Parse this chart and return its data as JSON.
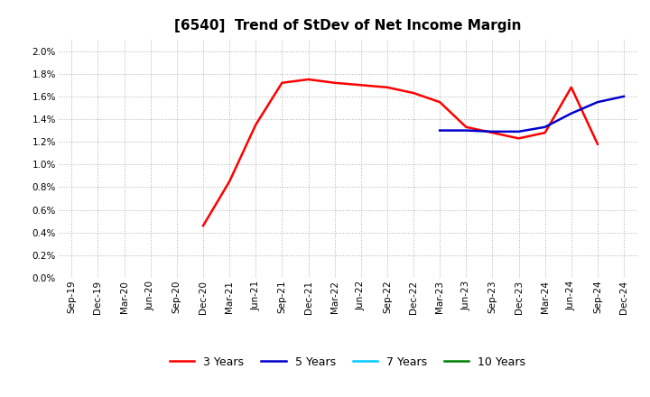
{
  "title": "[6540]  Trend of StDev of Net Income Margin",
  "ylim": [
    0.0,
    0.021
  ],
  "yticks": [
    0.0,
    0.002,
    0.004,
    0.006,
    0.008,
    0.01,
    0.012,
    0.014,
    0.016,
    0.018,
    0.02
  ],
  "ytick_labels": [
    "0.0%",
    "0.2%",
    "0.4%",
    "0.6%",
    "0.8%",
    "1.0%",
    "1.2%",
    "1.4%",
    "1.6%",
    "1.8%",
    "2.0%"
  ],
  "x_labels": [
    "Sep-19",
    "Dec-19",
    "Mar-20",
    "Jun-20",
    "Sep-20",
    "Dec-20",
    "Mar-21",
    "Jun-21",
    "Sep-21",
    "Dec-21",
    "Mar-22",
    "Jun-22",
    "Sep-22",
    "Dec-22",
    "Mar-23",
    "Jun-23",
    "Sep-23",
    "Dec-23",
    "Mar-24",
    "Jun-24",
    "Sep-24",
    "Dec-24"
  ],
  "series_3y": {
    "label": "3 Years",
    "color": "#ff0000",
    "data": [
      null,
      null,
      null,
      null,
      null,
      0.0046,
      0.0085,
      0.0135,
      0.0172,
      0.0175,
      0.0172,
      0.017,
      0.0168,
      0.0163,
      0.0155,
      0.0133,
      0.0128,
      0.0123,
      0.0128,
      0.0168,
      0.0118,
      null
    ]
  },
  "series_5y": {
    "label": "5 Years",
    "color": "#0000cc",
    "data": [
      null,
      null,
      null,
      null,
      null,
      null,
      null,
      null,
      null,
      null,
      null,
      null,
      null,
      null,
      0.013,
      0.013,
      0.0129,
      0.0129,
      0.0133,
      0.0145,
      0.0155,
      0.016
    ]
  },
  "series_7y": {
    "label": "7 Years",
    "color": "#00ccff",
    "data": [
      null,
      null,
      null,
      null,
      null,
      null,
      null,
      null,
      null,
      null,
      null,
      null,
      null,
      null,
      null,
      null,
      null,
      null,
      null,
      null,
      null,
      null
    ]
  },
  "series_10y": {
    "label": "10 Years",
    "color": "#008000",
    "data": [
      null,
      null,
      null,
      null,
      null,
      null,
      null,
      null,
      null,
      null,
      null,
      null,
      null,
      null,
      null,
      null,
      null,
      null,
      null,
      null,
      null,
      null
    ]
  },
  "background_color": "#ffffff",
  "grid_color": "#b0b0b0",
  "title_fontsize": 11,
  "legend_fontsize": 9,
  "tick_fontsize": 7.5
}
